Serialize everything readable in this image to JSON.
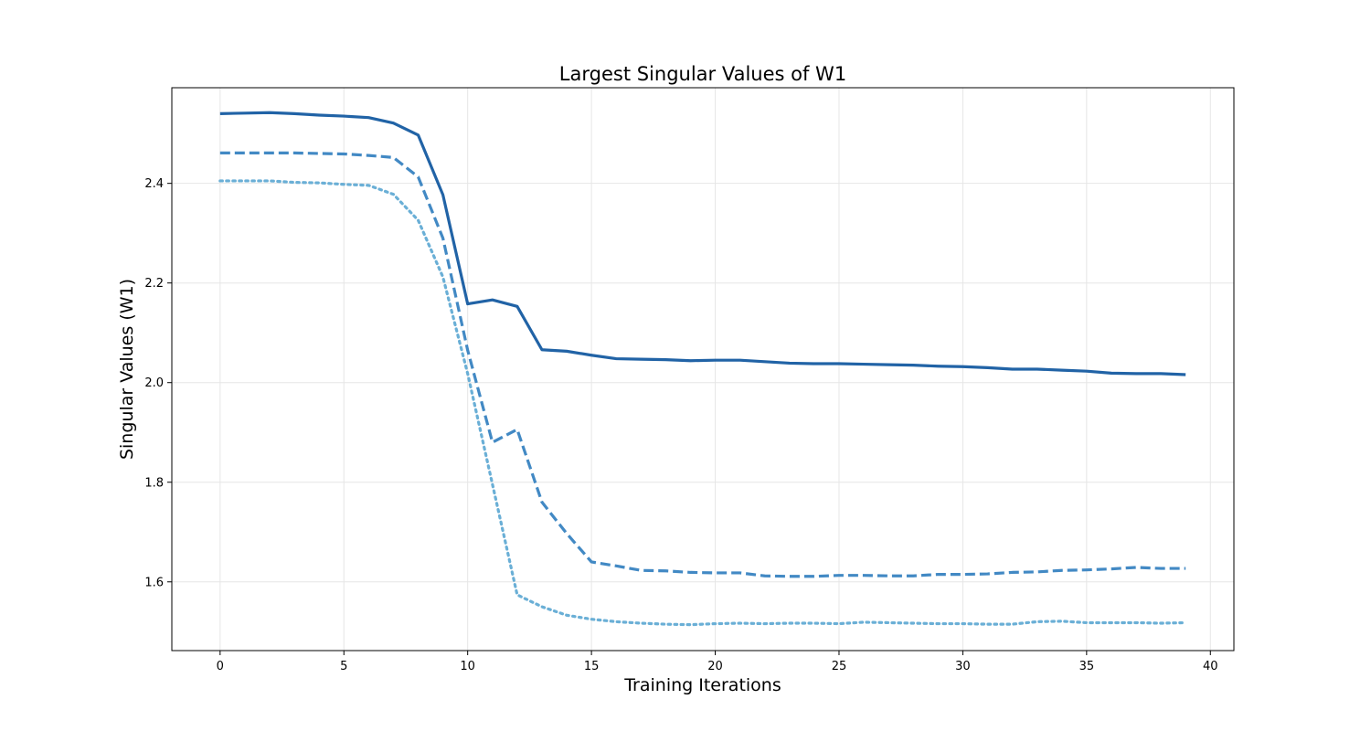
{
  "chart_data": {
    "type": "line",
    "title": "Largest Singular Values of W1",
    "xlabel": "Training Iterations",
    "ylabel": "Singular Values (W1)",
    "xlim": [
      -1.95,
      40.95
    ],
    "ylim": [
      1.462,
      2.592
    ],
    "xticks": [
      0,
      5,
      10,
      15,
      20,
      25,
      30,
      35,
      40
    ],
    "xtick_labels": [
      "0",
      "5",
      "10",
      "15",
      "20",
      "25",
      "30",
      "35",
      "40"
    ],
    "yticks": [
      1.6,
      1.8,
      2.0,
      2.2,
      2.4
    ],
    "ytick_labels": [
      "1.6",
      "1.8",
      "2.0",
      "2.2",
      "2.4"
    ],
    "grid": true,
    "legend": "none",
    "x": [
      0,
      1,
      2,
      3,
      4,
      5,
      6,
      7,
      8,
      9,
      10,
      11,
      12,
      13,
      14,
      15,
      16,
      17,
      18,
      19,
      20,
      21,
      22,
      23,
      24,
      25,
      26,
      27,
      28,
      29,
      30,
      31,
      32,
      33,
      34,
      35,
      36,
      37,
      38,
      39
    ],
    "series": [
      {
        "style": "solid",
        "color": "#2163a6",
        "values": [
          2.54,
          2.541,
          2.542,
          2.54,
          2.537,
          2.535,
          2.532,
          2.521,
          2.497,
          2.377,
          2.158,
          2.166,
          2.153,
          2.066,
          2.063,
          2.055,
          2.048,
          2.047,
          2.046,
          2.044,
          2.045,
          2.045,
          2.042,
          2.039,
          2.038,
          2.038,
          2.037,
          2.036,
          2.035,
          2.033,
          2.032,
          2.03,
          2.027,
          2.027,
          2.025,
          2.023,
          2.019,
          2.018,
          2.018,
          2.016
        ]
      },
      {
        "style": "dashed",
        "color": "#4289c4",
        "values": [
          2.461,
          2.461,
          2.461,
          2.461,
          2.46,
          2.459,
          2.456,
          2.452,
          2.413,
          2.29,
          2.065,
          1.88,
          1.906,
          1.76,
          1.697,
          1.64,
          1.632,
          1.623,
          1.622,
          1.619,
          1.618,
          1.618,
          1.612,
          1.611,
          1.611,
          1.613,
          1.613,
          1.612,
          1.612,
          1.615,
          1.615,
          1.616,
          1.619,
          1.62,
          1.623,
          1.624,
          1.626,
          1.629,
          1.627,
          1.627
        ]
      },
      {
        "style": "dotted",
        "color": "#6aafd6",
        "values": [
          2.405,
          2.405,
          2.405,
          2.402,
          2.401,
          2.398,
          2.396,
          2.378,
          2.326,
          2.212,
          2.018,
          1.796,
          1.574,
          1.55,
          1.533,
          1.525,
          1.52,
          1.517,
          1.515,
          1.514,
          1.516,
          1.517,
          1.516,
          1.517,
          1.517,
          1.516,
          1.519,
          1.518,
          1.517,
          1.516,
          1.516,
          1.515,
          1.515,
          1.52,
          1.521,
          1.518,
          1.518,
          1.518,
          1.517,
          1.518
        ]
      }
    ]
  }
}
